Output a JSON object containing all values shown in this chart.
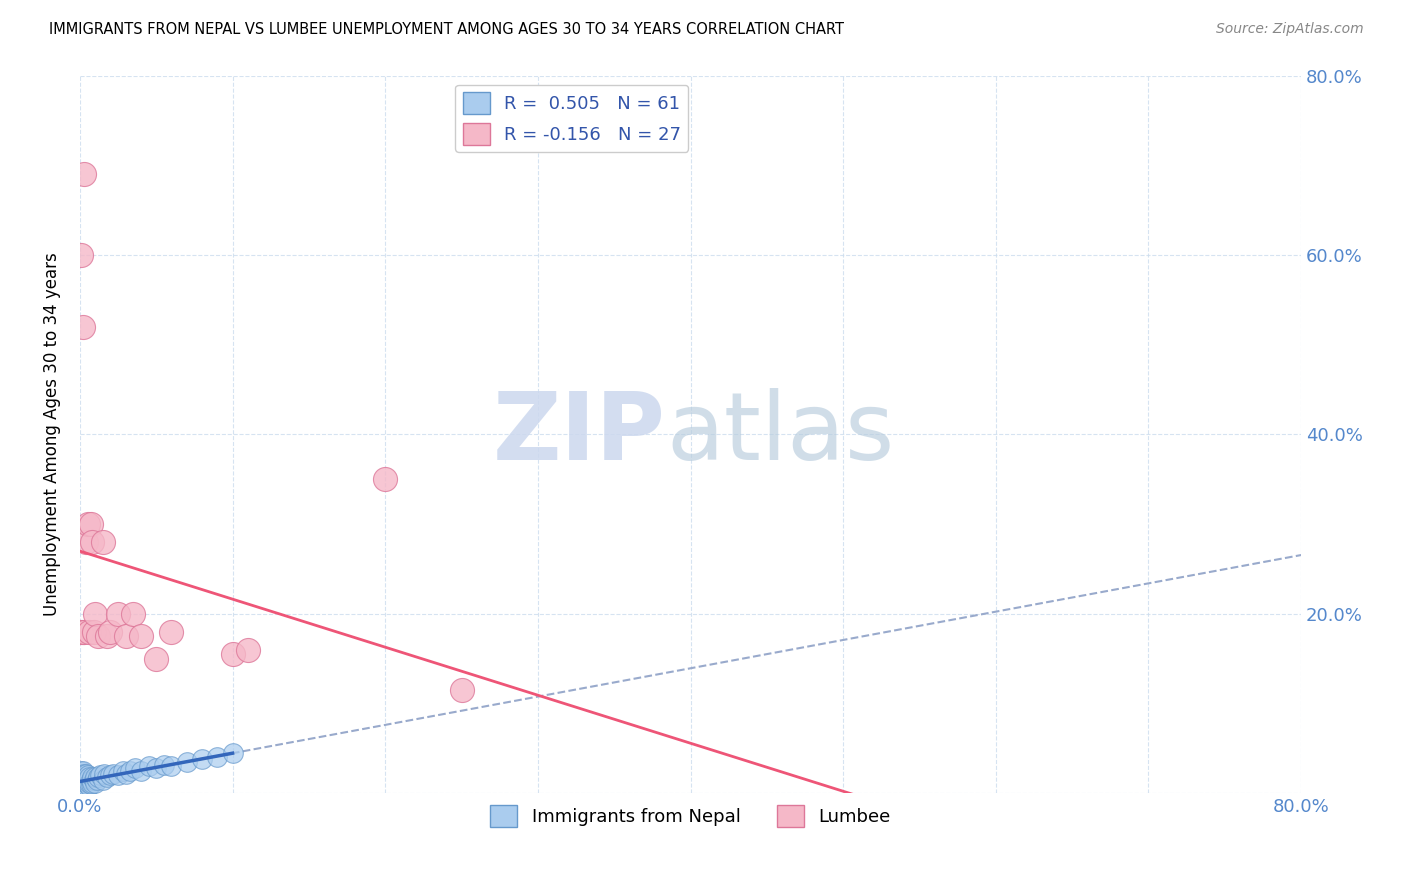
{
  "title": "IMMIGRANTS FROM NEPAL VS LUMBEE UNEMPLOYMENT AMONG AGES 30 TO 34 YEARS CORRELATION CHART",
  "source": "Source: ZipAtlas.com",
  "ylabel": "Unemployment Among Ages 30 to 34 years",
  "xlim": [
    0.0,
    0.8
  ],
  "ylim": [
    0.0,
    0.8
  ],
  "nepal_R": 0.505,
  "nepal_N": 61,
  "lumbee_R": -0.156,
  "lumbee_N": 27,
  "nepal_color": "#aaccee",
  "nepal_edge_color": "#6699cc",
  "lumbee_color": "#f5b8c8",
  "lumbee_edge_color": "#dd7799",
  "nepal_line_color": "#3366bb",
  "lumbee_line_color": "#ee5577",
  "trend_dash_color": "#99aacc",
  "background_color": "#ffffff",
  "nepal_x": [
    0.001,
    0.001,
    0.001,
    0.001,
    0.001,
    0.001,
    0.001,
    0.001,
    0.001,
    0.001,
    0.002,
    0.002,
    0.002,
    0.002,
    0.002,
    0.002,
    0.002,
    0.003,
    0.003,
    0.003,
    0.003,
    0.003,
    0.004,
    0.004,
    0.004,
    0.004,
    0.005,
    0.005,
    0.005,
    0.006,
    0.006,
    0.006,
    0.007,
    0.007,
    0.008,
    0.008,
    0.009,
    0.01,
    0.01,
    0.011,
    0.012,
    0.013,
    0.015,
    0.016,
    0.018,
    0.02,
    0.022,
    0.025,
    0.028,
    0.03,
    0.033,
    0.036,
    0.04,
    0.045,
    0.05,
    0.055,
    0.06,
    0.07,
    0.08,
    0.09,
    0.1
  ],
  "nepal_y": [
    0.005,
    0.008,
    0.01,
    0.012,
    0.015,
    0.018,
    0.02,
    0.022,
    0.025,
    0.003,
    0.005,
    0.008,
    0.01,
    0.015,
    0.018,
    0.02,
    0.025,
    0.005,
    0.01,
    0.015,
    0.018,
    0.022,
    0.008,
    0.012,
    0.018,
    0.022,
    0.01,
    0.015,
    0.02,
    0.008,
    0.012,
    0.018,
    0.01,
    0.015,
    0.012,
    0.018,
    0.015,
    0.012,
    0.018,
    0.015,
    0.018,
    0.02,
    0.015,
    0.022,
    0.018,
    0.02,
    0.022,
    0.02,
    0.025,
    0.022,
    0.025,
    0.028,
    0.025,
    0.03,
    0.028,
    0.032,
    0.03,
    0.035,
    0.038,
    0.04,
    0.045
  ],
  "lumbee_x": [
    0.001,
    0.001,
    0.002,
    0.002,
    0.003,
    0.003,
    0.004,
    0.005,
    0.006,
    0.007,
    0.008,
    0.009,
    0.01,
    0.012,
    0.015,
    0.018,
    0.02,
    0.025,
    0.03,
    0.035,
    0.04,
    0.05,
    0.06,
    0.1,
    0.11,
    0.2,
    0.25
  ],
  "lumbee_y": [
    0.6,
    0.18,
    0.52,
    0.18,
    0.69,
    0.18,
    0.28,
    0.3,
    0.18,
    0.3,
    0.28,
    0.18,
    0.2,
    0.175,
    0.28,
    0.175,
    0.18,
    0.2,
    0.175,
    0.2,
    0.175,
    0.15,
    0.18,
    0.155,
    0.16,
    0.35,
    0.115
  ]
}
